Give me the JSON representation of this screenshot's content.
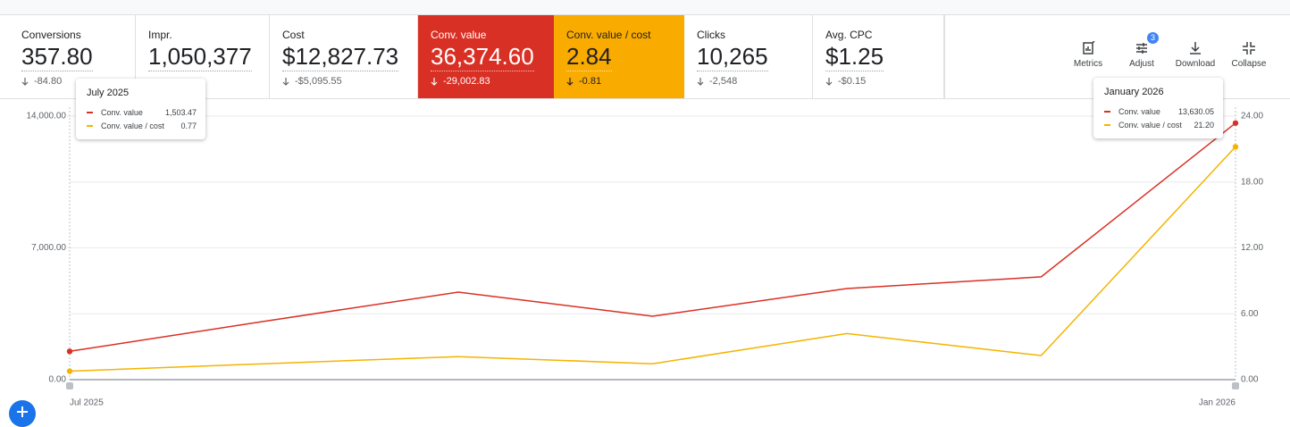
{
  "metrics": [
    {
      "label": "Conversions",
      "value": "357.80",
      "delta": "-84.80"
    },
    {
      "label": "Impr.",
      "value": "1,050,377"
    },
    {
      "label": "Cost",
      "value": "$12,827.73",
      "delta": "-$5,095.55"
    },
    {
      "label": "Conv. value",
      "value": "36,374.60",
      "delta": "-29,002.83",
      "color": "#d93025"
    },
    {
      "label": "Conv. value / cost",
      "value": "2.84",
      "delta": "-0.81",
      "color": "#f9ab00"
    },
    {
      "label": "Clicks",
      "value": "10,265",
      "delta": "-2,548"
    },
    {
      "label": "Avg. CPC",
      "value": "$1.25",
      "delta": "-$0.15"
    }
  ],
  "toolbar": [
    {
      "label": "Metrics"
    },
    {
      "label": "Adjust",
      "badge": "3"
    },
    {
      "label": "Download"
    },
    {
      "label": "Collapse"
    }
  ],
  "tooltips": [
    {
      "title": "July 2025"
    },
    {
      "title": "January 2026"
    }
  ],
  "chart_data": {
    "type": "line",
    "categories": [
      "Jul 2025",
      null,
      null,
      null,
      null,
      null,
      "Jan 2026"
    ],
    "series": [
      {
        "name": "Conv. value",
        "color": "#d93025",
        "values": [
          1503.47,
          3100,
          4650,
          3370,
          4840,
          5460,
          13630.05
        ],
        "value_labels": [
          "1,503.47",
          null,
          null,
          null,
          null,
          null,
          "13,630.05"
        ]
      },
      {
        "name": "Conv. value / cost",
        "color": "#f4b400",
        "axis": "y2",
        "values": [
          0.77,
          1.45,
          2.1,
          1.45,
          4.2,
          2.2,
          21.2
        ],
        "value_labels": [
          "0.77",
          null,
          null,
          null,
          null,
          null,
          "21.20"
        ]
      }
    ],
    "ylim": [
      0,
      14000
    ],
    "yticks": [
      {
        "value": 0,
        "label": "0.00"
      },
      {
        "value": 7000,
        "label": "7,000.00"
      },
      {
        "value": 14000,
        "label": "14,000.00"
      }
    ],
    "y2lim": [
      0,
      24
    ],
    "y2ticks": [
      {
        "value": 0,
        "label": "0.00"
      },
      {
        "value": 6,
        "label": "6.00"
      },
      {
        "value": 12,
        "label": "12.00"
      },
      {
        "value": 18,
        "label": "18.00"
      },
      {
        "value": 24,
        "label": "24.00"
      }
    ],
    "grid": true
  }
}
